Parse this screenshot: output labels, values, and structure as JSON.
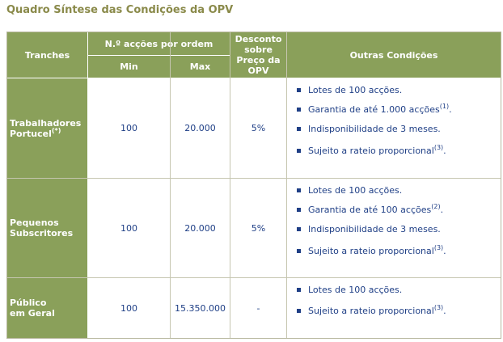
{
  "title": "Quadro Síntese das Condições da OPV",
  "headers": {
    "tranches": "Tranches",
    "acoes_por_ordem": "N.º acções por ordem",
    "min": "Min",
    "max": "Max",
    "desconto": "Desconto sobre Preço da OPV",
    "outras": "Outras Condições"
  },
  "rows": [
    {
      "tranche": "Trabalhadores Portucel",
      "tranche_sup": "(*)",
      "min": "100",
      "max": "20.000",
      "desconto": "5%",
      "conditions": [
        {
          "text": "Lotes de 100 acções.",
          "sup": ""
        },
        {
          "text": "Garantia de até 1.000 acções",
          "sup": "(1)",
          "after": "."
        },
        {
          "text": "Indisponibilidade de 3 meses.",
          "sup": ""
        },
        {
          "text": "Sujeito a rateio proporcional",
          "sup": "(3)",
          "after": "."
        }
      ]
    },
    {
      "tranche": "Pequenos Subscritores",
      "tranche_sup": "",
      "min": "100",
      "max": "20.000",
      "desconto": "5%",
      "conditions": [
        {
          "text": "Lotes de 100 acções.",
          "sup": ""
        },
        {
          "text": "Garantia de até 100 acções",
          "sup": "(2)",
          "after": "."
        },
        {
          "text": "Indisponibilidade de 3 meses.",
          "sup": ""
        },
        {
          "text": "Sujeito a rateio proporcional",
          "sup": "(3)",
          "after": "."
        }
      ]
    },
    {
      "tranche": "Público em Geral",
      "tranche_sup": "",
      "min": "100",
      "max": "15.350.000",
      "desconto": "-",
      "conditions": [
        {
          "text": "Lotes de 100 acções.",
          "sup": ""
        },
        {
          "text": "Sujeito a rateio proporcional",
          "sup": "(3)",
          "after": "."
        }
      ]
    }
  ],
  "colors": {
    "header_bg": "#8aa05a",
    "title": "#8a8a4a",
    "value_text": "#1f3f86"
  }
}
